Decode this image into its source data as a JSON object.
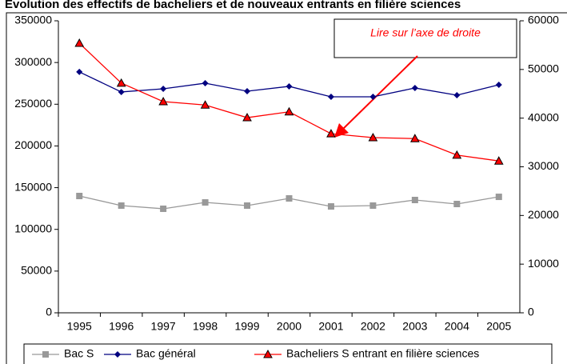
{
  "chart_data": {
    "type": "line",
    "title": "Evolution des effectifs de bacheliers et de nouveaux entrants en filière sciences",
    "annotation": "Lire sur l’axe de droite",
    "categories": [
      "1995",
      "1996",
      "1997",
      "1998",
      "1999",
      "2000",
      "2001",
      "2002",
      "2003",
      "2004",
      "2005"
    ],
    "series": [
      {
        "name": "Bac S",
        "color": "#999999",
        "marker": "square",
        "values": [
          140000,
          128500,
          124700,
          132300,
          128500,
          137100,
          127500,
          128500,
          135200,
          130400,
          139000
        ]
      },
      {
        "name": "Bac général",
        "color": "#000080",
        "marker": "diamond",
        "values": [
          288700,
          264700,
          268500,
          275200,
          265600,
          271400,
          258900,
          258900,
          269500,
          260800,
          273300
        ]
      },
      {
        "name": "Bacheliers S entrant en filière sciences",
        "color": "#ff0000",
        "marker": "triangle",
        "axis": "y2",
        "values": [
          55400,
          47200,
          43400,
          42700,
          40100,
          41300,
          36800,
          36000,
          35800,
          32400,
          31200
        ]
      }
    ],
    "ylim": [
      0,
      350000
    ],
    "yticks": [
      0,
      50000,
      100000,
      150000,
      200000,
      250000,
      300000,
      350000
    ],
    "y2lim": [
      0,
      60000
    ],
    "y2ticks": [
      0,
      10000,
      20000,
      30000,
      40000,
      50000,
      60000
    ],
    "grid": false
  }
}
